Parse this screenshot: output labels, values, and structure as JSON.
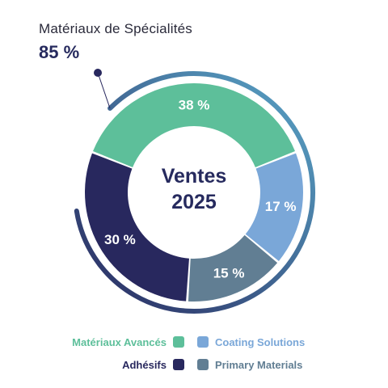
{
  "header": {
    "label": "Matériaux de Spécialités",
    "value": "85 %"
  },
  "chart_data": {
    "type": "pie",
    "style": "donut",
    "center_text": [
      "Ventes",
      "2025"
    ],
    "series": [
      {
        "name": "Matériaux Avancés",
        "value": 38,
        "label": "38 %",
        "color": "#5dbf9a",
        "label_color": "#ffffff"
      },
      {
        "name": "Coating Solutions",
        "value": 17,
        "label": "17 %",
        "color": "#7aa7d8",
        "label_color": "#ffffff"
      },
      {
        "name": "Primary Materials",
        "value": 15,
        "label": "15 %",
        "color": "#617e93",
        "label_color": "#ffffff"
      },
      {
        "name": "Adhésifs",
        "value": 30,
        "label": "30 %",
        "color": "#28285e",
        "label_color": "#ffffff"
      }
    ],
    "outer_arc": {
      "value": 85,
      "label": "85 %",
      "gradient": [
        "#28285e",
        "#5aa7c9"
      ]
    },
    "legend": {
      "placement": "bottom",
      "items": [
        {
          "name": "Matériaux Avancés",
          "color": "#5dbf9a",
          "text_color": "#5dbf9a"
        },
        {
          "name": "Coating Solutions",
          "color": "#7aa7d8",
          "text_color": "#7aa7d8"
        },
        {
          "name": "Adhésifs",
          "color": "#28285e",
          "text_color": "#28285e"
        },
        {
          "name": "Primary Materials",
          "color": "#617e93",
          "text_color": "#617e93"
        }
      ]
    }
  }
}
